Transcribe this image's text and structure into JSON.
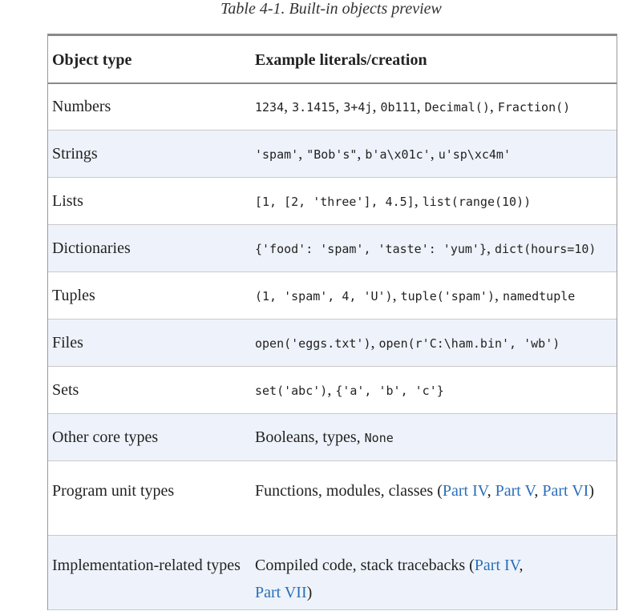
{
  "caption": "Table 4-1. Built-in objects preview",
  "headers": {
    "type": "Object type",
    "example": "Example literals/creation"
  },
  "rows": [
    {
      "type": "Numbers",
      "parts": [
        "1234",
        ", ",
        "3.1415",
        ", ",
        "3+4j",
        ", ",
        "0b111",
        ", ",
        "Decimal()",
        ", ",
        "Fraction()"
      ]
    },
    {
      "type": "Strings",
      "parts": [
        "'spam'",
        ", ",
        "\"Bob's\"",
        ", ",
        "b'a\\x01c'",
        ", ",
        "u'sp\\xc4m'"
      ]
    },
    {
      "type": "Lists",
      "parts": [
        "[1, [2, 'three'], 4.5]",
        ", ",
        "list(range(10))"
      ]
    },
    {
      "type": "Dictionaries",
      "parts": [
        "{'food': 'spam', 'taste': 'yum'}",
        ", ",
        "dict(hours=10)"
      ]
    },
    {
      "type": "Tuples",
      "parts": [
        "(1, 'spam', 4, 'U')",
        ", ",
        "tuple('spam')",
        ", ",
        "namedtuple"
      ]
    },
    {
      "type": "Files",
      "parts": [
        "open('eggs.txt')",
        ", ",
        "open(r'C:\\ham.bin', 'wb')"
      ]
    },
    {
      "type": "Sets",
      "parts": [
        "set('abc')",
        ", ",
        "{'a', 'b', 'c'}"
      ]
    },
    {
      "type": "Other core types",
      "parts": [
        "Booleans, types, ",
        "None"
      ]
    },
    {
      "type": "Program unit types",
      "parts": [
        "Functions, modules, classes (",
        "Part IV",
        ", ",
        "Part V",
        ", ",
        "Part VI",
        ")"
      ]
    },
    {
      "type": "Implementation-related types",
      "parts": [
        "Compiled code, stack tracebacks (",
        "Part IV",
        ", ",
        "Part VII",
        ")"
      ]
    }
  ]
}
